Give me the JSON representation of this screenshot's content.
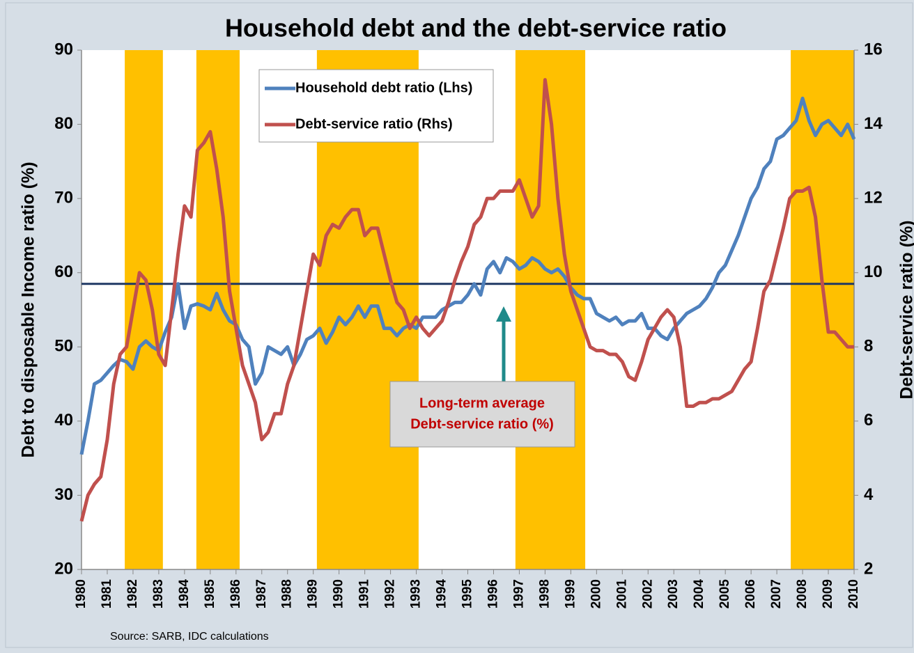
{
  "chart_data": {
    "type": "line",
    "title": "Household debt and the debt-service ratio",
    "y_label": "Debt to disposable Income ratio (%)",
    "y2_label": "Debt-service ratio (%)",
    "source": "Source: SARB, IDC calculations",
    "xlim": [
      1980,
      2010
    ],
    "xticks": [
      1980,
      1981,
      1982,
      1983,
      1984,
      1985,
      1986,
      1987,
      1988,
      1989,
      1990,
      1991,
      1992,
      1993,
      1994,
      1995,
      1996,
      1997,
      1998,
      1999,
      2000,
      2001,
      2002,
      2003,
      2004,
      2005,
      2006,
      2007,
      2008,
      2009,
      2010
    ],
    "ylim": [
      20,
      90
    ],
    "yticks": [
      20,
      30,
      40,
      50,
      60,
      70,
      80,
      90
    ],
    "y2lim": [
      2,
      16
    ],
    "y2ticks": [
      2,
      4,
      6,
      8,
      10,
      12,
      14,
      16
    ],
    "shaded_periods": [
      [
        1981.68,
        1983.16
      ],
      [
        1984.46,
        1986.14
      ],
      [
        1989.14,
        1993.09
      ],
      [
        1996.85,
        1999.56
      ],
      [
        2007.54,
        2010
      ]
    ],
    "shade_color": "#ffc000",
    "reference_line": {
      "value": 9.7,
      "axis": "y2",
      "color": "#1f3864"
    },
    "annotation": [
      "Long-term average",
      "Debt-service ratio (%)"
    ],
    "x": [
      1980,
      1980.25,
      1980.5,
      1980.75,
      1981,
      1981.25,
      1981.5,
      1981.75,
      1982,
      1982.25,
      1982.5,
      1982.75,
      1983,
      1983.25,
      1983.5,
      1983.75,
      1984,
      1984.25,
      1984.5,
      1984.75,
      1985,
      1985.25,
      1985.5,
      1985.75,
      1986,
      1986.25,
      1986.5,
      1986.75,
      1987,
      1987.25,
      1987.5,
      1987.75,
      1988,
      1988.25,
      1988.5,
      1988.75,
      1989,
      1989.25,
      1989.5,
      1989.75,
      1990,
      1990.25,
      1990.5,
      1990.75,
      1991,
      1991.25,
      1991.5,
      1991.75,
      1992,
      1992.25,
      1992.5,
      1992.75,
      1993,
      1993.25,
      1993.5,
      1993.75,
      1994,
      1994.25,
      1994.5,
      1994.75,
      1995,
      1995.25,
      1995.5,
      1995.75,
      1996,
      1996.25,
      1996.5,
      1996.75,
      1997,
      1997.25,
      1997.5,
      1997.75,
      1998,
      1998.25,
      1998.5,
      1998.75,
      1999,
      1999.25,
      1999.5,
      1999.75,
      2000,
      2000.25,
      2000.5,
      2000.75,
      2001,
      2001.25,
      2001.5,
      2001.75,
      2002,
      2002.25,
      2002.5,
      2002.75,
      2003,
      2003.25,
      2003.5,
      2003.75,
      2004,
      2004.25,
      2004.5,
      2004.75,
      2005,
      2005.25,
      2005.5,
      2005.75,
      2006,
      2006.25,
      2006.5,
      2006.75,
      2007,
      2007.25,
      2007.5,
      2007.75,
      2008,
      2008.25,
      2008.5,
      2008.75,
      2009,
      2009.25,
      2009.5,
      2009.75,
      2010
    ],
    "series": [
      {
        "name": "Household debt ratio (Lhs)",
        "color": "#4f81bd",
        "axis": "y",
        "values": [
          35.5,
          40,
          45,
          45.5,
          46.5,
          47.5,
          48.3,
          48,
          47,
          50,
          50.8,
          50,
          49.5,
          52,
          54,
          58.5,
          52.5,
          55.5,
          55.8,
          55.5,
          55,
          57.2,
          55,
          53.5,
          53,
          51,
          50,
          45,
          46.5,
          50,
          49.5,
          49,
          50,
          47.5,
          49,
          51,
          51.5,
          52.5,
          50.5,
          52,
          54,
          53,
          54,
          55.5,
          54,
          55.5,
          55.5,
          52.5,
          52.5,
          51.5,
          52.5,
          53,
          52.5,
          54,
          54,
          54,
          55,
          55.5,
          56,
          56,
          57,
          58.5,
          57,
          60.5,
          61.5,
          60,
          62,
          61.5,
          60.5,
          61,
          62,
          61.5,
          60.5,
          60,
          60.5,
          59.5,
          58,
          57,
          56.5,
          56.5,
          54.5,
          54,
          53.5,
          54,
          53,
          53.5,
          53.5,
          54.5,
          52.5,
          52.5,
          51.5,
          51,
          52.5,
          53.5,
          54.5,
          55,
          55.5,
          56.5,
          58,
          60,
          61,
          63,
          65,
          67.5,
          70,
          71.5,
          74,
          75,
          78,
          78.5,
          79.5,
          80.5,
          83.5,
          80.5,
          78.5,
          80,
          80.5,
          79.5,
          78.5,
          80,
          78
        ]
      },
      {
        "name": "Debt-service ratio (Rhs)",
        "color": "#c0504d",
        "axis": "y2",
        "values": [
          3.3,
          4,
          4.3,
          4.5,
          5.5,
          7,
          7.8,
          8,
          9,
          10,
          9.8,
          9,
          7.8,
          7.5,
          9,
          10.5,
          11.8,
          11.5,
          13.3,
          13.5,
          13.8,
          12.8,
          11.5,
          9.5,
          8.5,
          7.5,
          7,
          6.5,
          5.5,
          5.7,
          6.2,
          6.2,
          7,
          7.5,
          8.5,
          9.5,
          10.5,
          10.2,
          11,
          11.3,
          11.2,
          11.5,
          11.7,
          11.7,
          11,
          11.2,
          11.2,
          10.5,
          9.8,
          9.2,
          9,
          8.5,
          8.8,
          8.5,
          8.3,
          8.5,
          8.7,
          9.2,
          9.8,
          10.3,
          10.7,
          11.3,
          11.5,
          12,
          12,
          12.2,
          12.2,
          12.2,
          12.5,
          12,
          11.5,
          11.8,
          15.2,
          14,
          12,
          10.5,
          9.5,
          9,
          8.5,
          8,
          7.9,
          7.9,
          7.8,
          7.8,
          7.6,
          7.2,
          7.1,
          7.6,
          8.2,
          8.5,
          8.8,
          9,
          8.8,
          8,
          6.4,
          6.4,
          6.5,
          6.5,
          6.6,
          6.6,
          6.7,
          6.8,
          7.1,
          7.4,
          7.6,
          8.5,
          9.5,
          9.8,
          10.5,
          11.2,
          12,
          12.2,
          12.2,
          12.3,
          11.5,
          9.8,
          8.4,
          8.4,
          8.2,
          8,
          8
        ]
      }
    ]
  }
}
